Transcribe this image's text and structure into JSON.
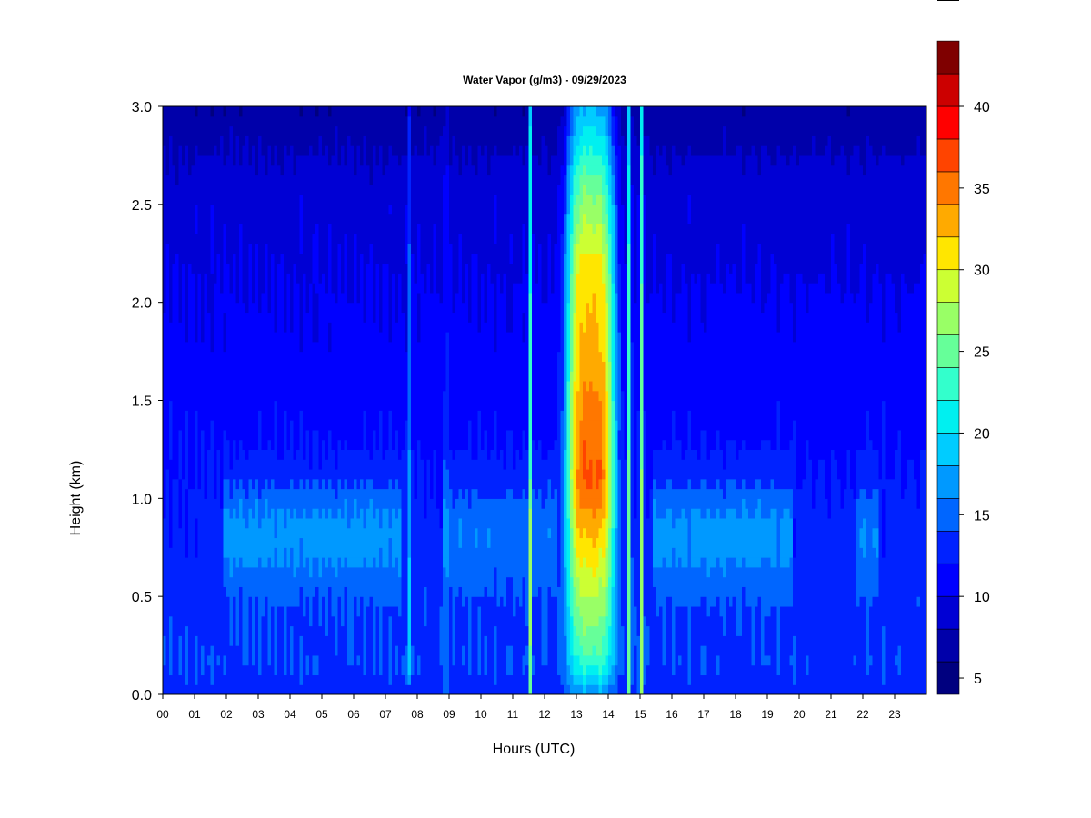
{
  "chart_data": {
    "type": "heatmap",
    "title": "Water Vapor (g/m3) - 09/29/2023",
    "xlabel": "Hours (UTC)",
    "ylabel": "Height (km)",
    "xlim": [
      0,
      24
    ],
    "ylim": [
      0.0,
      3.0
    ],
    "x_ticks": [
      "00",
      "01",
      "02",
      "03",
      "04",
      "05",
      "06",
      "07",
      "08",
      "09",
      "10",
      "11",
      "12",
      "13",
      "14",
      "15",
      "16",
      "17",
      "18",
      "19",
      "20",
      "21",
      "22",
      "23"
    ],
    "y_ticks": [
      "0.0",
      "0.5",
      "1.0",
      "1.5",
      "2.0",
      "2.5",
      "3.0"
    ],
    "colorbar": {
      "min": 4,
      "max": 40,
      "step": 2,
      "ticks": [
        "5",
        "10",
        "15",
        "20",
        "25",
        "30",
        "35",
        "40"
      ],
      "colors": [
        "#00007F",
        "#0000AA",
        "#0000D4",
        "#0000FF",
        "#0022FF",
        "#0066FF",
        "#0099FF",
        "#00CCFF",
        "#00F0F0",
        "#33FFCC",
        "#66FF99",
        "#99FF66",
        "#CCFF33",
        "#FFE600",
        "#FFAA00",
        "#FF7700",
        "#FF4400",
        "#FF0000",
        "#CC0000",
        "#7F0000"
      ]
    },
    "grid": false,
    "legend": "colorbar-right"
  }
}
